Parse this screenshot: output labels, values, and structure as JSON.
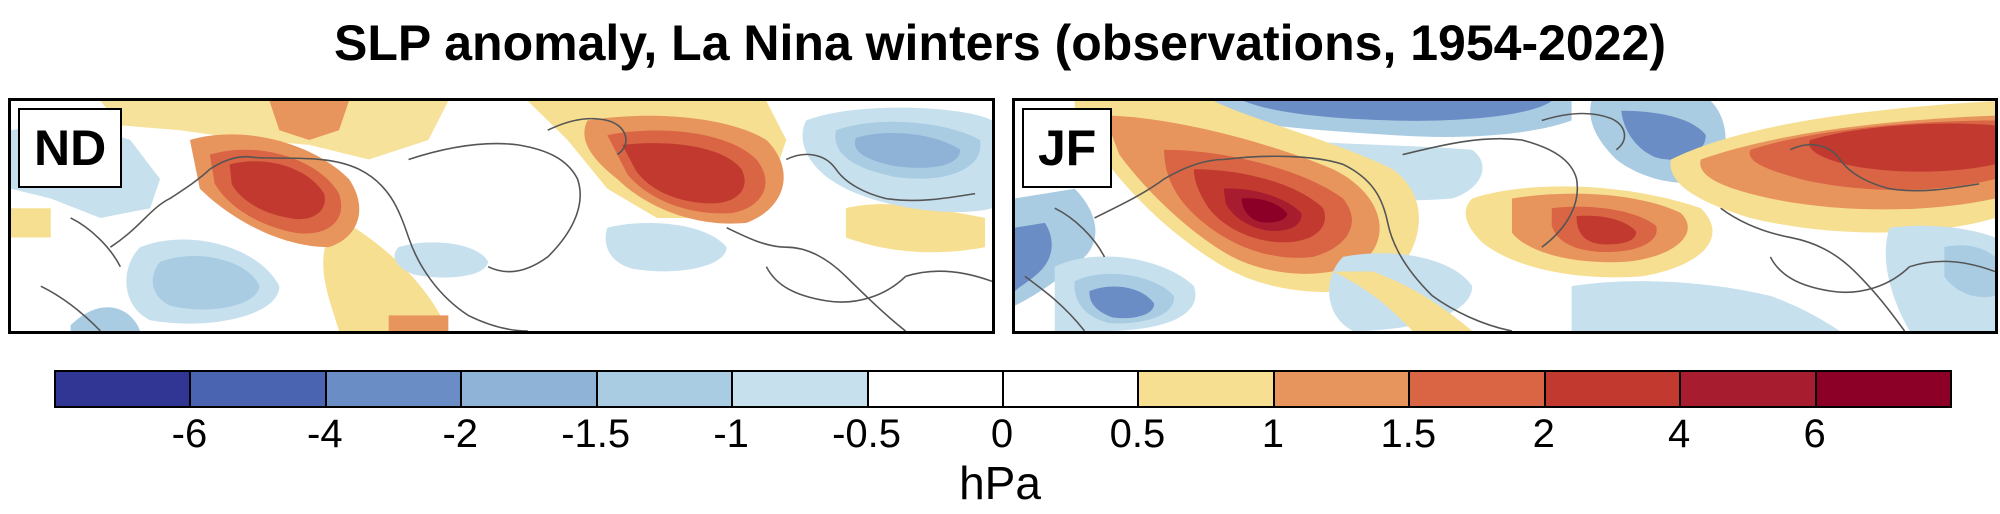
{
  "title": "SLP anomaly, La Nina winters (observations, 1954-2022)",
  "panels": [
    {
      "label": "ND"
    },
    {
      "label": "JF"
    }
  ],
  "colorbar": {
    "colors": [
      "#313695",
      "#4a64b1",
      "#6a8dc5",
      "#8fb3d7",
      "#a9cce3",
      "#c6e0ee",
      "#ffffff",
      "#ffffff",
      "#f6df91",
      "#e8955d",
      "#d96544",
      "#c1392f",
      "#a81c2f",
      "#8c0028"
    ],
    "tick_labels": [
      "-6",
      "-4",
      "-2",
      "-1.5",
      "-1",
      "-0.5",
      "0",
      "0.5",
      "1",
      "1.5",
      "2",
      "4",
      "6"
    ],
    "units": "hPa"
  }
}
